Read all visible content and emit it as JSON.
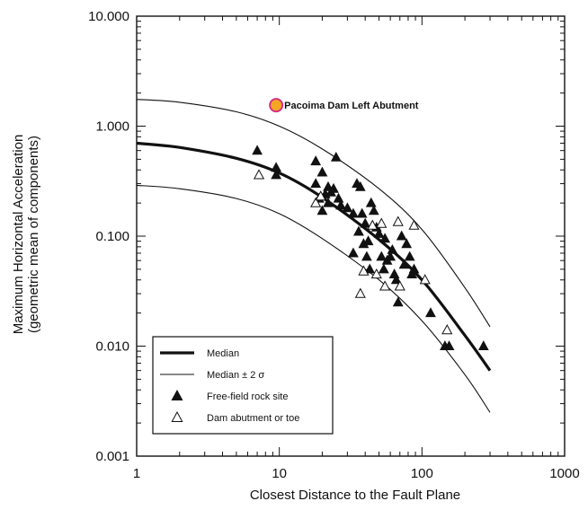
{
  "chart_data": {
    "type": "scatter",
    "title": "",
    "xlabel": "Closest Distance to the Fault Plane",
    "ylabel": "Maximum Horizontal Acceleration",
    "ylabel2": "(geometric mean of components)",
    "x_scale": "log",
    "y_scale": "log",
    "xlim": [
      1,
      1000
    ],
    "ylim": [
      0.001,
      10
    ],
    "x_ticks": [
      "1",
      "10",
      "100",
      "1000"
    ],
    "y_ticks": [
      "10.000",
      "1.000",
      "0.100",
      "0.010",
      "0.001"
    ],
    "grid": false,
    "legend_position": "bottom-left",
    "legend": [
      {
        "label": "Median",
        "style": "thick-line"
      },
      {
        "label": "Median ± 2 σ",
        "style": "thin-line"
      },
      {
        "label": "Free-field rock site",
        "style": "filled-triangle"
      },
      {
        "label": "Dam abutment or toe",
        "style": "open-triangle"
      }
    ],
    "curves": [
      {
        "name": "Median",
        "x": [
          1,
          2,
          5,
          10,
          20,
          50,
          100,
          200,
          300
        ],
        "y": [
          0.7,
          0.64,
          0.51,
          0.375,
          0.225,
          0.093,
          0.04,
          0.0125,
          0.006
        ]
      },
      {
        "name": "Median + 2σ",
        "x": [
          1,
          2,
          5,
          10,
          20,
          50,
          100,
          200,
          300
        ],
        "y": [
          1.75,
          1.65,
          1.35,
          1.0,
          0.62,
          0.27,
          0.115,
          0.034,
          0.015
        ]
      },
      {
        "name": "Median - 2σ",
        "x": [
          1,
          2,
          5,
          10,
          20,
          50,
          100,
          200,
          300
        ],
        "y": [
          0.29,
          0.27,
          0.22,
          0.16,
          0.095,
          0.04,
          0.017,
          0.0055,
          0.0025
        ]
      }
    ],
    "series": [
      {
        "name": "Free-field rock site",
        "marker": "filled-triangle",
        "points": [
          [
            7,
            0.6
          ],
          [
            9.5,
            0.42
          ],
          [
            9.5,
            0.36
          ],
          [
            18,
            0.48
          ],
          [
            18,
            0.3
          ],
          [
            19,
            0.22
          ],
          [
            20,
            0.38
          ],
          [
            20,
            0.17
          ],
          [
            21,
            0.24
          ],
          [
            22,
            0.28
          ],
          [
            22,
            0.2
          ],
          [
            23,
            0.25
          ],
          [
            24,
            0.27
          ],
          [
            25,
            0.52
          ],
          [
            26,
            0.22
          ],
          [
            27,
            0.19
          ],
          [
            30,
            0.18
          ],
          [
            33,
            0.16
          ],
          [
            33,
            0.07
          ],
          [
            35,
            0.3
          ],
          [
            36,
            0.11
          ],
          [
            37,
            0.28
          ],
          [
            38,
            0.16
          ],
          [
            39,
            0.085
          ],
          [
            40,
            0.13
          ],
          [
            41,
            0.065
          ],
          [
            42,
            0.09
          ],
          [
            43,
            0.05
          ],
          [
            44,
            0.2
          ],
          [
            46,
            0.17
          ],
          [
            48,
            0.12
          ],
          [
            50,
            0.105
          ],
          [
            52,
            0.065
          ],
          [
            54,
            0.05
          ],
          [
            55,
            0.095
          ],
          [
            57,
            0.06
          ],
          [
            60,
            0.065
          ],
          [
            62,
            0.075
          ],
          [
            64,
            0.045
          ],
          [
            66,
            0.04
          ],
          [
            68,
            0.025
          ],
          [
            72,
            0.1
          ],
          [
            75,
            0.055
          ],
          [
            78,
            0.085
          ],
          [
            82,
            0.065
          ],
          [
            85,
            0.045
          ],
          [
            88,
            0.05
          ],
          [
            115,
            0.02
          ],
          [
            145,
            0.01
          ],
          [
            155,
            0.01
          ],
          [
            270,
            0.01
          ]
        ]
      },
      {
        "name": "Dam abutment or toe",
        "marker": "open-triangle",
        "points": [
          [
            7.2,
            0.36
          ],
          [
            18,
            0.2
          ],
          [
            19.5,
            0.23
          ],
          [
            37,
            0.03
          ],
          [
            39,
            0.048
          ],
          [
            45,
            0.125
          ],
          [
            48,
            0.045
          ],
          [
            52,
            0.13
          ],
          [
            55,
            0.035
          ],
          [
            68,
            0.135
          ],
          [
            70,
            0.035
          ],
          [
            88,
            0.125
          ],
          [
            105,
            0.04
          ],
          [
            150,
            0.014
          ]
        ]
      }
    ],
    "annotation": {
      "label": "Pacoima Dam Left Abutment",
      "x": 9.5,
      "y": 1.55,
      "color": "#f5a623",
      "edge_color": "#d63384"
    },
    "colors": {
      "ink": "#111111",
      "highlight_fill": "#f5a623",
      "highlight_edge": "#d63384"
    }
  }
}
